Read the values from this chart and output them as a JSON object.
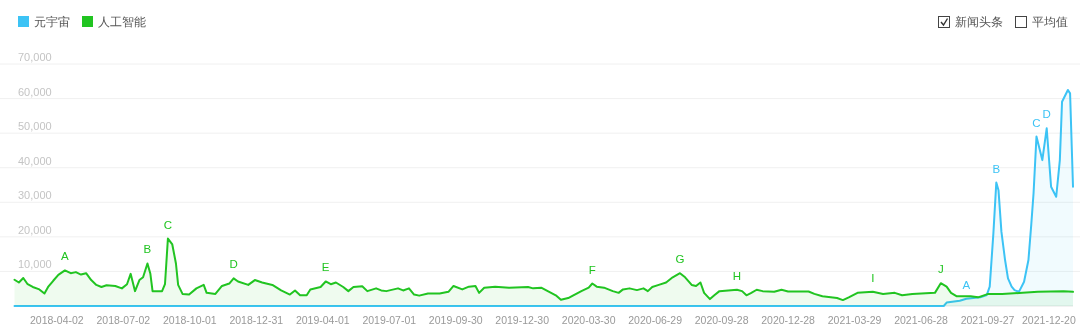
{
  "chart_data": {
    "type": "area",
    "legend": "top left",
    "grid": "y",
    "xlim": [
      "2018-02-03",
      "2022-01-22"
    ],
    "ylim": [
      0,
      70000
    ],
    "xticks": [
      "2018-04-02",
      "2018-07-02",
      "2018-10-01",
      "2018-12-31",
      "2019-04-01",
      "2019-07-01",
      "2019-09-30",
      "2019-12-30",
      "2020-03-30",
      "2020-06-29",
      "2020-09-28",
      "2020-12-28",
      "2021-03-29",
      "2021-06-28",
      "2021-09-27",
      "2021-12-20"
    ],
    "yticks": [
      {
        "value": 10000,
        "label": "10,000"
      },
      {
        "value": 20000,
        "label": "20,000"
      },
      {
        "value": 30000,
        "label": "30,000"
      },
      {
        "value": 40000,
        "label": "40,000"
      },
      {
        "value": 50000,
        "label": "50,000"
      },
      {
        "value": 60000,
        "label": "60,000"
      },
      {
        "value": 70000,
        "label": "70,000"
      }
    ],
    "series": [
      {
        "name": "元宇宙",
        "color": "#3cc3f5",
        "x": [
          "2018-02-03",
          "2021-07-29",
          "2021-08-02",
          "2021-08-20",
          "2021-08-29",
          "2021-09-17",
          "2021-09-26",
          "2021-09-30",
          "2021-10-05",
          "2021-10-09",
          "2021-10-12",
          "2021-10-16",
          "2021-10-21",
          "2021-10-25",
          "2021-10-30",
          "2021-11-03",
          "2021-11-09",
          "2021-11-16",
          "2021-11-22",
          "2021-11-26",
          "2021-11-29",
          "2021-12-03",
          "2021-12-11",
          "2021-12-17",
          "2021-12-23",
          "2021-12-30",
          "2022-01-04",
          "2022-01-07",
          "2022-01-15",
          "2022-01-18",
          "2022-01-22"
        ],
        "values": [
          0,
          0,
          1000,
          1500,
          2100,
          2500,
          3200,
          5600,
          21000,
          35700,
          33500,
          21500,
          13300,
          8000,
          5600,
          4600,
          4100,
          7000,
          13300,
          23900,
          32600,
          49000,
          42200,
          51400,
          34500,
          31600,
          42200,
          59100,
          62500,
          61500,
          34500
        ]
      },
      {
        "name": "人工智能",
        "color": "#21c421",
        "x": [
          "2018-02-03",
          "2018-02-09",
          "2018-02-15",
          "2018-02-21",
          "2018-02-28",
          "2018-03-09",
          "2018-03-16",
          "2018-03-21",
          "2018-03-28",
          "2018-04-04",
          "2018-04-13",
          "2018-04-21",
          "2018-04-28",
          "2018-05-05",
          "2018-05-12",
          "2018-05-19",
          "2018-05-26",
          "2018-06-02",
          "2018-06-09",
          "2018-06-21",
          "2018-06-30",
          "2018-07-07",
          "2018-07-12",
          "2018-07-18",
          "2018-07-24",
          "2018-07-29",
          "2018-08-04",
          "2018-08-08",
          "2018-08-11",
          "2018-08-24",
          "2018-08-28",
          "2018-09-01",
          "2018-09-07",
          "2018-09-12",
          "2018-09-15",
          "2018-09-21",
          "2018-09-30",
          "2018-10-10",
          "2018-10-20",
          "2018-10-24",
          "2018-11-05",
          "2018-11-14",
          "2018-11-24",
          "2018-11-30",
          "2018-12-06",
          "2018-12-20",
          "2018-12-29",
          "2019-01-08",
          "2019-01-22",
          "2019-02-03",
          "2019-02-15",
          "2019-02-22",
          "2019-03-01",
          "2019-03-10",
          "2019-03-15",
          "2019-03-29",
          "2019-04-05",
          "2019-04-12",
          "2019-04-19",
          "2019-04-29",
          "2019-05-06",
          "2019-05-13",
          "2019-05-25",
          "2019-06-01",
          "2019-06-13",
          "2019-06-20",
          "2019-06-27",
          "2019-07-13",
          "2019-07-20",
          "2019-07-28",
          "2019-08-04",
          "2019-08-11",
          "2019-08-23",
          "2019-09-08",
          "2019-09-20",
          "2019-09-27",
          "2019-10-09",
          "2019-10-18",
          "2019-10-27",
          "2019-11-01",
          "2019-11-08",
          "2019-11-23",
          "2019-12-12",
          "2020-01-07",
          "2020-01-14",
          "2020-01-25",
          "2020-02-03",
          "2020-02-14",
          "2020-02-21",
          "2020-03-02",
          "2020-03-09",
          "2020-03-20",
          "2020-03-30",
          "2020-04-04",
          "2020-04-10",
          "2020-04-20",
          "2020-05-02",
          "2020-05-10",
          "2020-05-16",
          "2020-05-25",
          "2020-06-04",
          "2020-06-13",
          "2020-06-19",
          "2020-06-25",
          "2020-07-04",
          "2020-07-14",
          "2020-07-23",
          "2020-08-02",
          "2020-08-09",
          "2020-08-18",
          "2020-08-24",
          "2020-08-30",
          "2020-09-04",
          "2020-09-12",
          "2020-09-18",
          "2020-09-25",
          "2020-10-07",
          "2020-10-19",
          "2020-10-26",
          "2020-11-01",
          "2020-11-07",
          "2020-11-15",
          "2020-11-23",
          "2020-12-09",
          "2020-12-19",
          "2020-12-28",
          "2021-01-25",
          "2021-02-02",
          "2021-02-13",
          "2021-03-05",
          "2021-03-13",
          "2021-03-21",
          "2021-04-02",
          "2021-04-23",
          "2021-05-07",
          "2021-05-23",
          "2021-06-02",
          "2021-06-16",
          "2021-07-17",
          "2021-07-25",
          "2021-08-02",
          "2021-08-08",
          "2021-08-16",
          "2021-09-04",
          "2021-09-14",
          "2021-09-28",
          "2021-10-17",
          "2021-11-14",
          "2021-12-05",
          "2022-01-09",
          "2022-01-22"
        ],
        "values": [
          7600,
          6800,
          8100,
          6300,
          5500,
          4800,
          3600,
          5500,
          7300,
          9000,
          10300,
          9500,
          9800,
          9100,
          9500,
          7500,
          6100,
          5500,
          6000,
          5800,
          5100,
          6300,
          9300,
          4300,
          7500,
          8300,
          12300,
          9300,
          4300,
          4300,
          6300,
          19500,
          17800,
          12300,
          6100,
          3500,
          3300,
          5100,
          6100,
          3800,
          3500,
          5800,
          6500,
          8000,
          7100,
          6100,
          7500,
          6800,
          6100,
          4500,
          3300,
          4500,
          3100,
          3100,
          4800,
          5500,
          7100,
          6300,
          6800,
          5500,
          4300,
          5500,
          5700,
          4300,
          5100,
          4500,
          4300,
          5100,
          4500,
          5100,
          3300,
          3000,
          3600,
          3600,
          4100,
          5800,
          4800,
          5600,
          5800,
          3800,
          5300,
          5600,
          5300,
          5500,
          5100,
          5300,
          4300,
          3100,
          1800,
          2300,
          3100,
          4300,
          5300,
          6500,
          5600,
          5300,
          4300,
          3800,
          4800,
          5100,
          4600,
          5100,
          4300,
          5500,
          6100,
          6800,
          8300,
          9500,
          8300,
          6100,
          5800,
          6800,
          3800,
          2000,
          3100,
          4300,
          4500,
          4700,
          4300,
          3100,
          3700,
          4700,
          4300,
          4100,
          4700,
          4200,
          4200,
          3500,
          2800,
          2300,
          1700,
          2500,
          3800,
          4100,
          3500,
          3800,
          3100,
          3500,
          3800,
          6600,
          5600,
          3800,
          2800,
          2800,
          2500,
          3500,
          3500,
          3800,
          4100,
          4300,
          4100
        ]
      }
    ],
    "annotations": [
      "新闻头条",
      "平均值",
      {
        "text": "A",
        "x": "2018-04-13",
        "y": 10300
      },
      {
        "text": "B",
        "x": "2018-08-04",
        "y": 12300
      },
      {
        "text": "C",
        "x": "2018-09-01",
        "y": 19500
      },
      {
        "text": "D",
        "x": "2018-11-30",
        "y": 8000
      },
      {
        "text": "E",
        "x": "2019-04-05",
        "y": 7100
      },
      {
        "text": "F",
        "x": "2020-04-04",
        "y": 6500
      },
      {
        "text": "G",
        "x": "2020-08-02",
        "y": 9500
      },
      {
        "text": "H",
        "x": "2020-10-19",
        "y": 4700
      },
      {
        "text": "I",
        "x": "2021-04-23",
        "y": 4100
      },
      {
        "text": "J",
        "x": "2021-07-25",
        "y": 6600
      },
      {
        "text": "A",
        "x": "2021-08-29",
        "y": 2100
      },
      {
        "text": "B",
        "x": "2021-10-09",
        "y": 35700
      },
      {
        "text": "C",
        "x": "2021-12-03",
        "y": 49000
      },
      {
        "text": "D",
        "x": "2021-12-17",
        "y": 51400
      }
    ]
  }
}
